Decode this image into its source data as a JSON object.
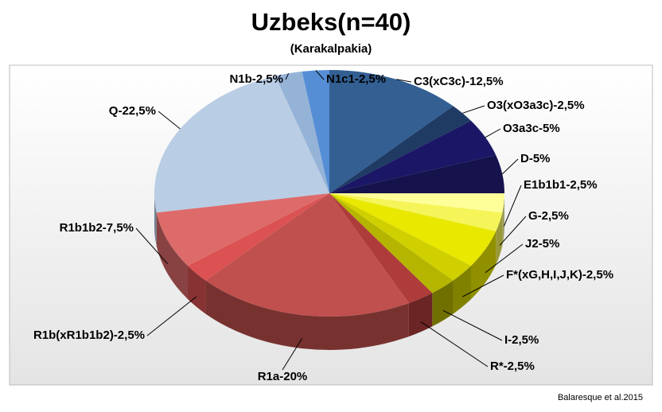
{
  "chart_data": {
    "type": "pie3d",
    "title": "Uzbeks(n=40)",
    "subtitle": "(Karakalpakia)",
    "source": "Balaresque et al.2015",
    "values": [
      12.5,
      2.5,
      5,
      5,
      2.5,
      2.5,
      5,
      2.5,
      2.5,
      2.5,
      20,
      2.5,
      7.5,
      22.5,
      2.5,
      2.5
    ],
    "value_labels": [
      "C3(xC3c)-12,5%",
      "O3(xO3a3c)-2,5%",
      "O3a3c-5%",
      "D-5%",
      "E1b1b1-2,5%",
      "G-2,5%",
      "J2-5%",
      "F*(xG,H,I,J,K)-2,5%",
      "I-2,5%",
      "R*-2,5%",
      "R1a-20%",
      "R1b(xR1b1b2)-2,5%",
      "R1b1b2-7,5%",
      "Q-22,5%",
      "N1b-2,5%",
      "N1c1-2,5%"
    ],
    "colors": [
      "#335f93",
      "#1f3b63",
      "#1b1766",
      "#15124c",
      "#ffff99",
      "#f5f55a",
      "#e8e800",
      "#d0d000",
      "#b5b500",
      "#ad3c3a",
      "#c0504d",
      "#dc5252",
      "#dd6b6a",
      "#b9cde5",
      "#95b3d7",
      "#558ed5"
    ]
  }
}
